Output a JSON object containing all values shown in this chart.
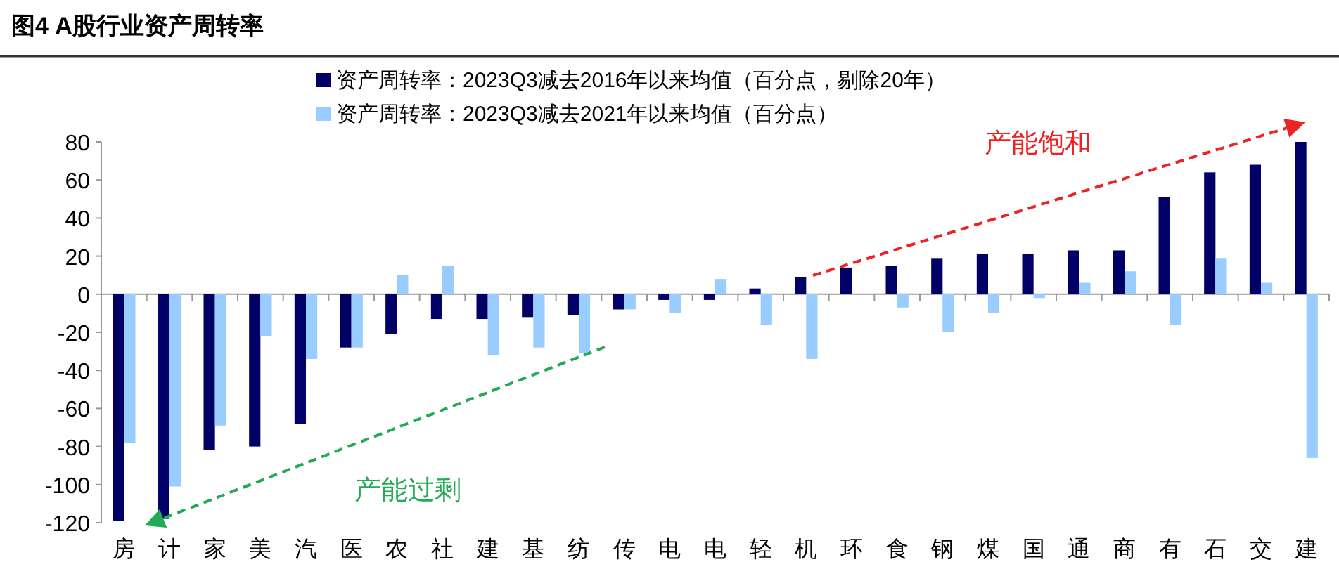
{
  "chart_data": {
    "type": "bar",
    "title": "图4  A股行业资产周转率",
    "categories": [
      "房",
      "计",
      "家",
      "美",
      "汽",
      "医",
      "农",
      "社",
      "建",
      "基",
      "纺",
      "传",
      "电",
      "电",
      "轻",
      "机",
      "环",
      "食",
      "钢",
      "煤",
      "国",
      "通",
      "商",
      "有",
      "石",
      "交",
      "建"
    ],
    "series": [
      {
        "name": "资产周转率：2023Q3减去2016年以来均值（百分点，剔除20年）",
        "color": "#000066",
        "values": [
          -119,
          -118,
          -82,
          -80,
          -68,
          -28,
          -21,
          -13,
          -13,
          -12,
          -11,
          -8,
          -3,
          -3,
          3,
          9,
          14,
          15,
          19,
          21,
          21,
          23,
          23,
          51,
          64,
          68,
          80
        ]
      },
      {
        "name": "资产周转率：2023Q3减去2021年以来均值（百分点）",
        "color": "#99ccff",
        "values": [
          -78,
          -101,
          -69,
          -22,
          -34,
          -28,
          10,
          15,
          -32,
          -28,
          -31,
          -8,
          -10,
          8,
          -16,
          -34,
          0,
          -7,
          -20,
          -10,
          -2,
          6,
          12,
          -16,
          19,
          6,
          -86
        ]
      }
    ],
    "ylim": [
      -120,
      80
    ],
    "yticks": [
      -120,
      -100,
      -80,
      -60,
      -40,
      -20,
      0,
      20,
      40,
      60,
      80
    ],
    "legend": "top",
    "annotations": [
      "产能过剩",
      "产能饱和"
    ]
  }
}
